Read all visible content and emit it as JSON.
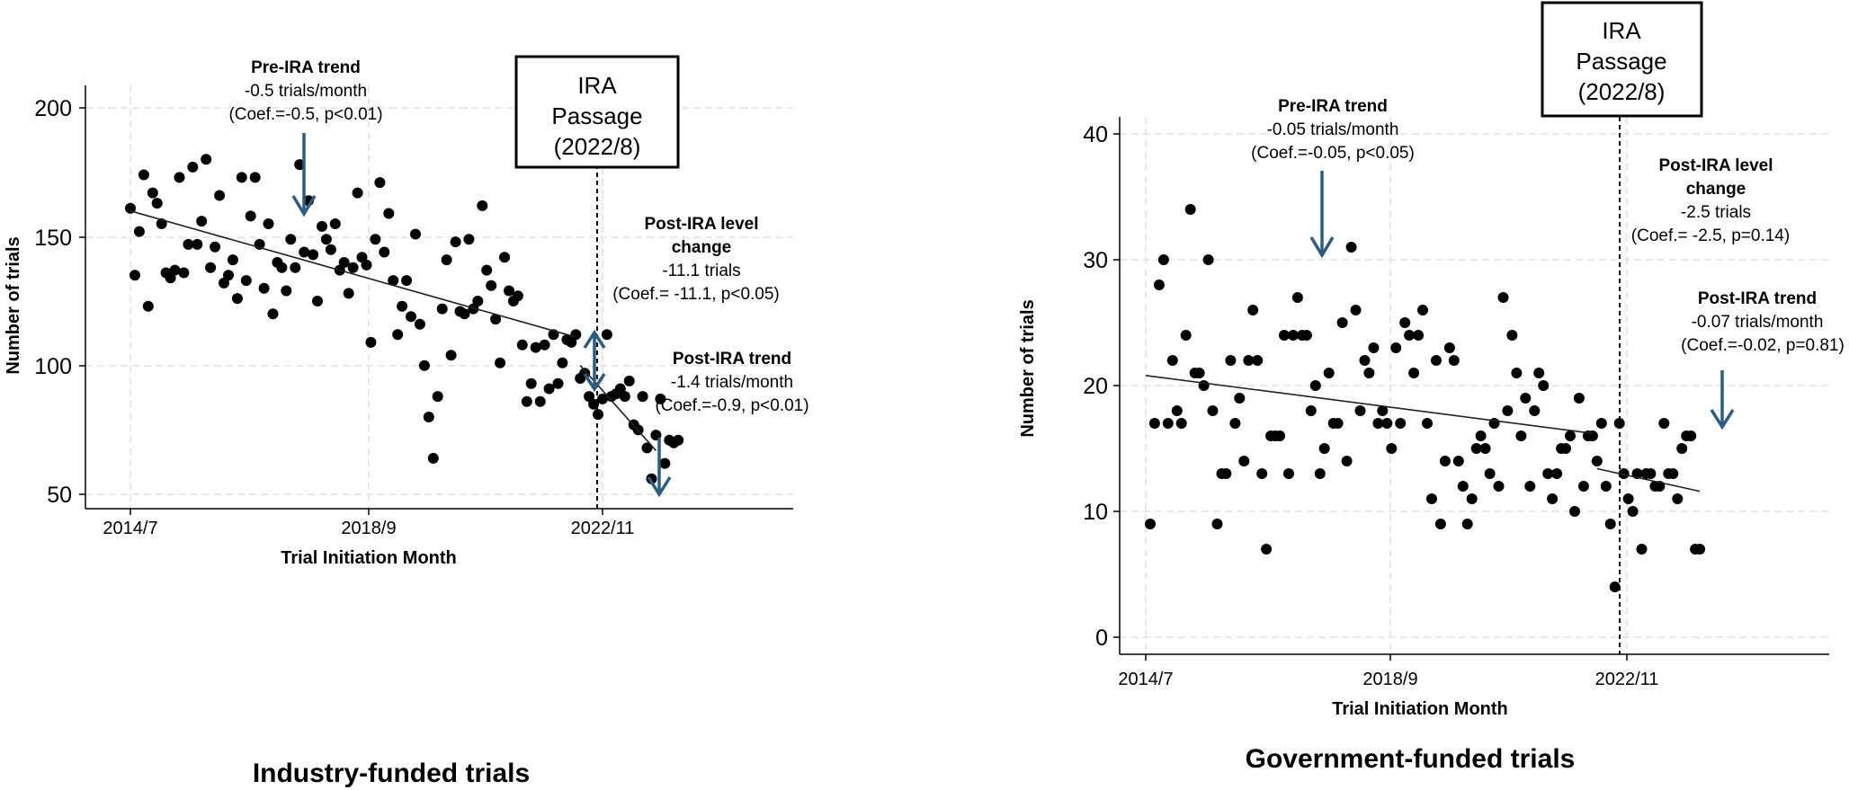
{
  "chart_data": [
    {
      "type": "scatter",
      "caption": "Industry-funded trials",
      "xlabel": "Trial Initiation Month",
      "ylabel": "Number of trials",
      "xticks": [
        "2014/7",
        "2018/9",
        "2022/11"
      ],
      "yticks": [
        "50",
        "100",
        "150",
        "200"
      ],
      "ylim": [
        50,
        200
      ],
      "xlim_months": [
        0,
        127
      ],
      "grid": true,
      "event_line_month": 100,
      "event_box": [
        "IRA",
        "Passage",
        "(2022/8)"
      ],
      "pre_trend": {
        "x": [
          0,
          100
        ],
        "y": [
          160,
          111
        ]
      },
      "post_trend": {
        "x": [
          101,
          118
        ],
        "y": [
          100,
          67
        ]
      },
      "annotations": {
        "pre": {
          "title": "Pre-IRA trend",
          "line1": "-0.5 trials/month",
          "line2": "(Coef.=-0.5, p<0.01)"
        },
        "level": {
          "title1": "Post-IRA level",
          "title2": "change",
          "line1": "-11.1 trials",
          "line2": "(Coef.= -11.1, p<0.05)"
        },
        "post": {
          "title": "Post-IRA trend",
          "line1": "-1.4 trials/month",
          "line2": "(Coef.=-0.9, p<0.01)"
        }
      },
      "arrow_color": "#2e5c80",
      "points": [
        [
          0,
          161
        ],
        [
          1,
          135
        ],
        [
          2,
          152
        ],
        [
          3,
          174
        ],
        [
          4,
          123
        ],
        [
          5,
          167
        ],
        [
          6,
          163
        ],
        [
          7,
          155
        ],
        [
          8,
          136
        ],
        [
          9,
          134
        ],
        [
          10,
          137
        ],
        [
          11,
          173
        ],
        [
          12,
          136
        ],
        [
          13,
          147
        ],
        [
          14,
          177
        ],
        [
          15,
          147
        ],
        [
          16,
          156
        ],
        [
          17,
          180
        ],
        [
          18,
          138
        ],
        [
          19,
          146
        ],
        [
          20,
          166
        ],
        [
          21,
          132
        ],
        [
          22,
          135
        ],
        [
          23,
          141
        ],
        [
          24,
          126
        ],
        [
          25,
          173
        ],
        [
          26,
          133
        ],
        [
          27,
          158
        ],
        [
          28,
          173
        ],
        [
          29,
          147
        ],
        [
          30,
          130
        ],
        [
          31,
          155
        ],
        [
          32,
          120
        ],
        [
          33,
          140
        ],
        [
          34,
          138
        ],
        [
          35,
          129
        ],
        [
          36,
          149
        ],
        [
          37,
          138
        ],
        [
          38,
          178
        ],
        [
          39,
          144
        ],
        [
          40,
          164
        ],
        [
          41,
          143
        ],
        [
          42,
          125
        ],
        [
          43,
          154
        ],
        [
          44,
          149
        ],
        [
          45,
          145
        ],
        [
          46,
          155
        ],
        [
          47,
          137
        ],
        [
          48,
          140
        ],
        [
          49,
          128
        ],
        [
          50,
          138
        ],
        [
          51,
          167
        ],
        [
          52,
          142
        ],
        [
          53,
          139
        ],
        [
          54,
          109
        ],
        [
          55,
          149
        ],
        [
          56,
          171
        ],
        [
          57,
          144
        ],
        [
          58,
          159
        ],
        [
          59,
          133
        ],
        [
          60,
          112
        ],
        [
          61,
          123
        ],
        [
          62,
          133
        ],
        [
          63,
          119
        ],
        [
          64,
          151
        ],
        [
          65,
          116
        ],
        [
          66,
          100
        ],
        [
          67,
          80
        ],
        [
          68,
          64
        ],
        [
          69,
          88
        ],
        [
          70,
          122
        ],
        [
          71,
          141
        ],
        [
          72,
          104
        ],
        [
          73,
          148
        ],
        [
          74,
          121
        ],
        [
          75,
          120
        ],
        [
          76,
          149
        ],
        [
          77,
          122
        ],
        [
          78,
          125
        ],
        [
          79,
          162
        ],
        [
          80,
          137
        ],
        [
          81,
          131
        ],
        [
          82,
          118
        ],
        [
          83,
          101
        ],
        [
          84,
          142
        ],
        [
          85,
          129
        ],
        [
          86,
          125
        ],
        [
          87,
          127
        ],
        [
          88,
          108
        ],
        [
          89,
          86
        ],
        [
          90,
          93
        ],
        [
          91,
          107
        ],
        [
          92,
          86
        ],
        [
          93,
          108
        ],
        [
          94,
          91
        ],
        [
          95,
          112
        ],
        [
          96,
          93
        ],
        [
          97,
          101
        ],
        [
          98,
          110
        ],
        [
          99,
          109
        ],
        [
          100,
          112
        ],
        [
          101,
          95
        ],
        [
          102,
          97
        ],
        [
          103,
          88
        ],
        [
          104,
          85
        ],
        [
          105,
          81
        ],
        [
          106,
          87
        ],
        [
          107,
          112
        ],
        [
          108,
          88
        ],
        [
          109,
          89
        ],
        [
          110,
          91
        ],
        [
          111,
          88
        ],
        [
          112,
          94
        ],
        [
          113,
          77
        ],
        [
          114,
          75
        ],
        [
          115,
          88
        ],
        [
          116,
          68
        ],
        [
          117,
          56
        ],
        [
          118,
          73
        ],
        [
          119,
          87
        ],
        [
          120,
          62
        ],
        [
          121,
          71
        ],
        [
          122,
          70
        ],
        [
          123,
          71
        ]
      ]
    },
    {
      "type": "scatter",
      "caption": "Government-funded trials",
      "xlabel": "Trial Initiation Month",
      "ylabel": "Number of trials",
      "xticks": [
        "2014/7",
        "2018/9",
        "2022/11"
      ],
      "yticks": [
        "0",
        "10",
        "20",
        "30",
        "40"
      ],
      "ylim": [
        0,
        40
      ],
      "xlim_months": [
        0,
        127
      ],
      "grid": true,
      "event_line_month": 100,
      "event_box": [
        "IRA",
        "Passage",
        "(2022/8)"
      ],
      "pre_trend": {
        "x": [
          0,
          100
        ],
        "y": [
          20.8,
          16.2
        ]
      },
      "post_trend": {
        "x": [
          101,
          124
        ],
        "y": [
          13.4,
          11.6
        ]
      },
      "annotations": {
        "pre": {
          "title": "Pre-IRA trend",
          "line1": "-0.05 trials/month",
          "line2": "(Coef.=-0.05, p<0.05)"
        },
        "level": {
          "title1": "Post-IRA level",
          "title2": "change",
          "line1": "-2.5 trials",
          "line2": "(Coef.= -2.5, p=0.14)"
        },
        "post": {
          "title": "Post-IRA trend",
          "line1": "-0.07 trials/month",
          "line2": "(Coef.=-0.02, p=0.81)"
        }
      },
      "arrow_color": "#2e5c80",
      "points": [
        [
          1,
          9
        ],
        [
          2,
          17
        ],
        [
          3,
          28
        ],
        [
          4,
          30
        ],
        [
          5,
          17
        ],
        [
          6,
          22
        ],
        [
          7,
          18
        ],
        [
          8,
          17
        ],
        [
          9,
          24
        ],
        [
          10,
          34
        ],
        [
          11,
          21
        ],
        [
          12,
          21
        ],
        [
          13,
          20
        ],
        [
          14,
          30
        ],
        [
          15,
          18
        ],
        [
          16,
          9
        ],
        [
          17,
          13
        ],
        [
          18,
          13
        ],
        [
          19,
          22
        ],
        [
          20,
          17
        ],
        [
          21,
          19
        ],
        [
          22,
          14
        ],
        [
          23,
          22
        ],
        [
          24,
          26
        ],
        [
          25,
          22
        ],
        [
          26,
          13
        ],
        [
          27,
          7
        ],
        [
          28,
          16
        ],
        [
          29,
          16
        ],
        [
          30,
          16
        ],
        [
          31,
          24
        ],
        [
          32,
          13
        ],
        [
          33,
          24
        ],
        [
          34,
          27
        ],
        [
          35,
          24
        ],
        [
          36,
          24
        ],
        [
          37,
          18
        ],
        [
          38,
          20
        ],
        [
          39,
          13
        ],
        [
          40,
          15
        ],
        [
          41,
          21
        ],
        [
          42,
          17
        ],
        [
          43,
          17
        ],
        [
          44,
          25
        ],
        [
          45,
          14
        ],
        [
          46,
          31
        ],
        [
          47,
          26
        ],
        [
          48,
          18
        ],
        [
          49,
          22
        ],
        [
          50,
          21
        ],
        [
          51,
          23
        ],
        [
          52,
          17
        ],
        [
          53,
          18
        ],
        [
          54,
          17
        ],
        [
          55,
          15
        ],
        [
          56,
          23
        ],
        [
          57,
          17
        ],
        [
          58,
          25
        ],
        [
          59,
          24
        ],
        [
          60,
          21
        ],
        [
          61,
          24
        ],
        [
          62,
          26
        ],
        [
          63,
          17
        ],
        [
          64,
          11
        ],
        [
          65,
          22
        ],
        [
          66,
          9
        ],
        [
          67,
          14
        ],
        [
          68,
          23
        ],
        [
          69,
          22
        ],
        [
          70,
          14
        ],
        [
          71,
          12
        ],
        [
          72,
          9
        ],
        [
          73,
          11
        ],
        [
          74,
          15
        ],
        [
          75,
          16
        ],
        [
          76,
          15
        ],
        [
          77,
          13
        ],
        [
          78,
          17
        ],
        [
          79,
          12
        ],
        [
          80,
          27
        ],
        [
          81,
          18
        ],
        [
          82,
          24
        ],
        [
          83,
          21
        ],
        [
          84,
          16
        ],
        [
          85,
          19
        ],
        [
          86,
          12
        ],
        [
          87,
          18
        ],
        [
          88,
          21
        ],
        [
          89,
          20
        ],
        [
          90,
          13
        ],
        [
          91,
          11
        ],
        [
          92,
          13
        ],
        [
          93,
          15
        ],
        [
          94,
          15
        ],
        [
          95,
          16
        ],
        [
          96,
          10
        ],
        [
          97,
          19
        ],
        [
          98,
          12
        ],
        [
          99,
          16
        ],
        [
          100,
          16
        ],
        [
          101,
          14
        ],
        [
          102,
          17
        ],
        [
          103,
          12
        ],
        [
          104,
          9
        ],
        [
          105,
          4
        ],
        [
          106,
          17
        ],
        [
          107,
          13
        ],
        [
          108,
          11
        ],
        [
          109,
          10
        ],
        [
          110,
          13
        ],
        [
          111,
          7
        ],
        [
          112,
          13
        ],
        [
          113,
          13
        ],
        [
          114,
          12
        ],
        [
          115,
          12
        ],
        [
          116,
          17
        ],
        [
          117,
          13
        ],
        [
          118,
          13
        ],
        [
          119,
          11
        ],
        [
          120,
          15
        ],
        [
          121,
          16
        ],
        [
          122,
          16
        ],
        [
          123,
          7
        ],
        [
          124,
          7
        ]
      ]
    }
  ]
}
